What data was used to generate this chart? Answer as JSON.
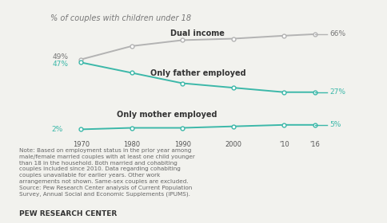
{
  "title": "% of couples with children under 18",
  "x_labels": [
    "1970",
    "1980",
    "1990",
    "2000",
    "'10",
    "'16"
  ],
  "x_values": [
    1970,
    1980,
    1990,
    2000,
    2010,
    2016
  ],
  "dual_income": [
    49,
    58,
    62,
    63,
    65,
    66
  ],
  "only_father": [
    47,
    40,
    33,
    30,
    27,
    27
  ],
  "only_mother": [
    2,
    3,
    3,
    4,
    5,
    5
  ],
  "dual_color": "#b3b3b3",
  "teal_color": "#3cb8a9",
  "note_lines": [
    "Note: Based on employment status in the prior year among",
    "male/female married couples with at least one child younger",
    "than 18 in the household. Both married and cohabiting",
    "couples included since 2010. Data regarding cohabiting",
    "couples unavailable for earlier years. Other work",
    "arrangements not shown. Same-sex couples are excluded.",
    "Source: Pew Research Center analysis of Current Population",
    "Survey, Annual Social and Economic Supplements (IPUMS)."
  ],
  "footer": "PEW RESEARCH CENTER",
  "bg_color": "#f2f2ee"
}
